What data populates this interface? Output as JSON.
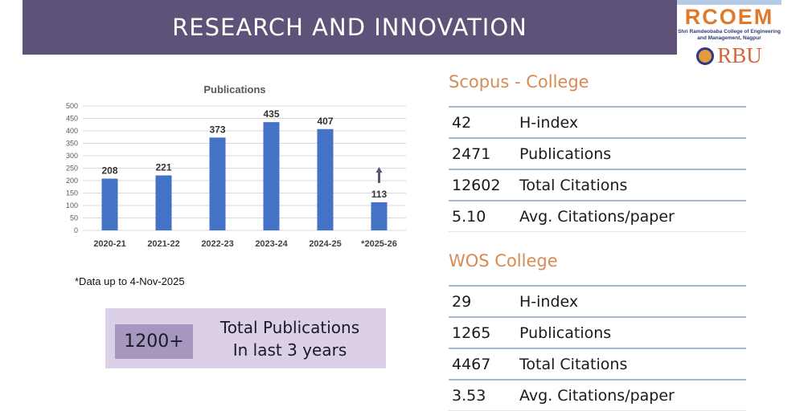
{
  "header": {
    "title": "RESEARCH AND INNOVATION"
  },
  "logo": {
    "name": "RCOEM",
    "subtitle": "Shri Ramdeobaba College of Engineering and Management, Nagpur",
    "university": "RBU"
  },
  "chart_data": {
    "type": "bar",
    "title": "Publications",
    "categories": [
      "2020-21",
      "2021-22",
      "2022-23",
      "2023-24",
      "2024-25",
      "*2025-26"
    ],
    "values": [
      208,
      221,
      373,
      435,
      407,
      113
    ],
    "ylim": [
      0,
      500
    ],
    "yticks": [
      0,
      50,
      100,
      150,
      200,
      250,
      300,
      350,
      400,
      450,
      500
    ],
    "grid": true,
    "bar_color": "#4472c4",
    "annotation": "upward arrow above *2025-26 bar"
  },
  "note": "*Data up to 4-Nov-2025",
  "highlight": {
    "value": "1200+",
    "line1": "Total Publications",
    "line2": "In last 3 years"
  },
  "scopus": {
    "title": "Scopus - College",
    "rows": [
      {
        "value": "42",
        "label": "H-index"
      },
      {
        "value": "2471",
        "label": "Publications"
      },
      {
        "value": "12602",
        "label": "Total Citations"
      },
      {
        "value": "5.10",
        "label": "Avg. Citations/paper"
      }
    ]
  },
  "wos": {
    "title": "WOS College",
    "rows": [
      {
        "value": "29",
        "label": "H-index"
      },
      {
        "value": "1265",
        "label": "Publications"
      },
      {
        "value": "4467",
        "label": "Total Citations"
      },
      {
        "value": "3.53",
        "label": "Avg. Citations/paper"
      }
    ]
  }
}
